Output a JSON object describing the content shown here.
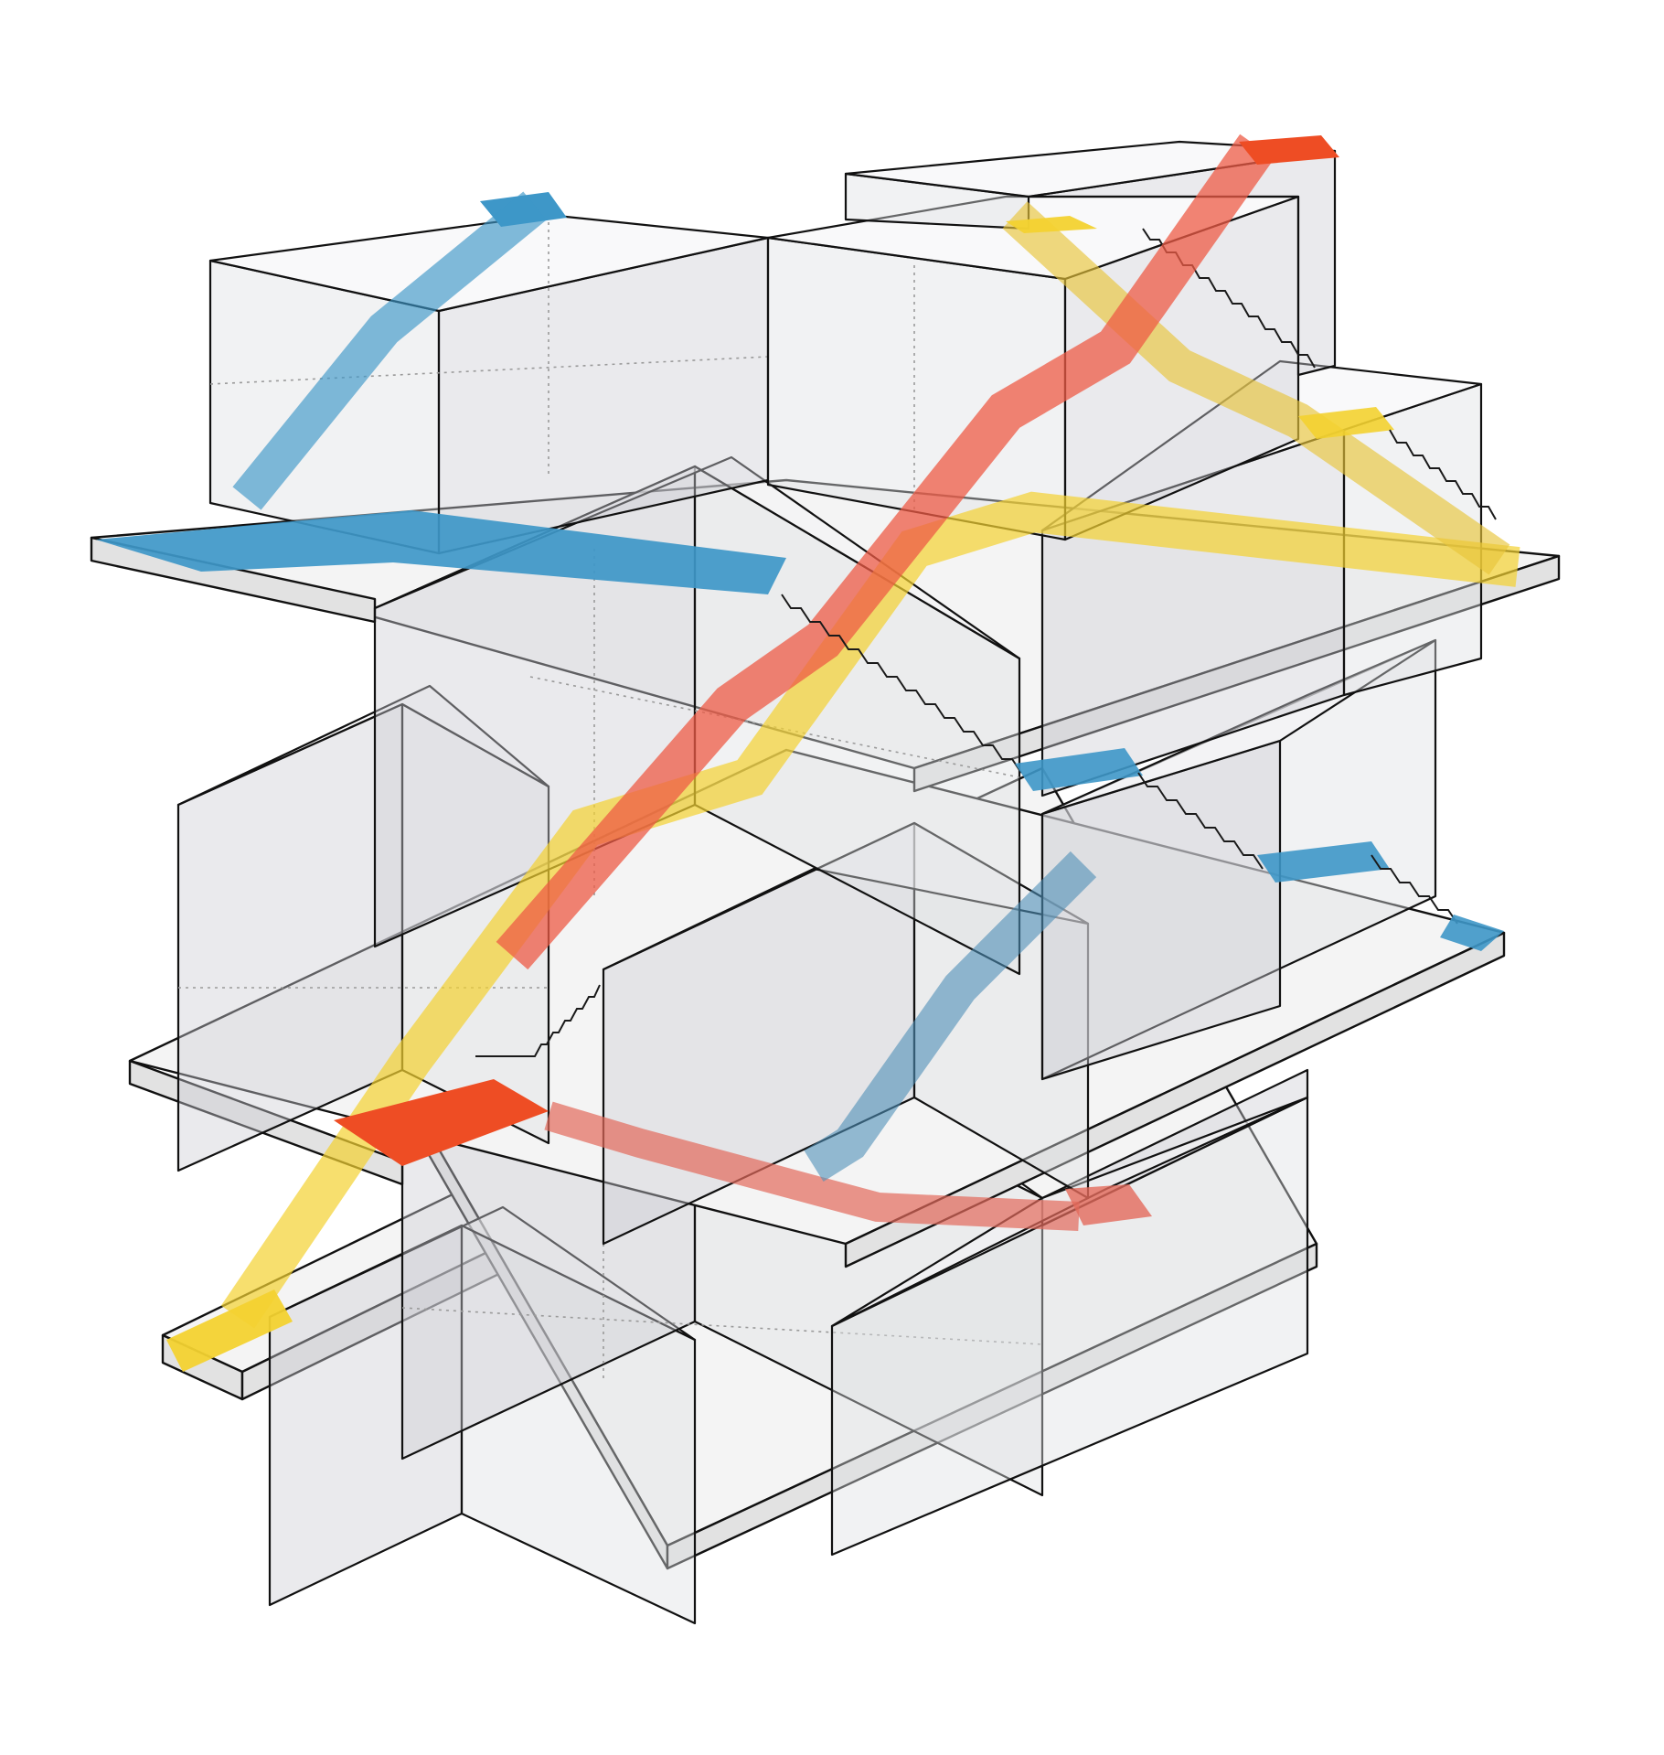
{
  "diagram": {
    "kind": "axonometric circulation diagram",
    "colors": {
      "background": "#ffffff",
      "outline": "#111111",
      "circulation_blue": "#3e97c8",
      "circulation_red": "#ee4d24",
      "circulation_yellow": "#f3d230"
    },
    "routes": [
      {
        "id": "blue"
      },
      {
        "id": "red"
      },
      {
        "id": "yellow"
      }
    ]
  }
}
